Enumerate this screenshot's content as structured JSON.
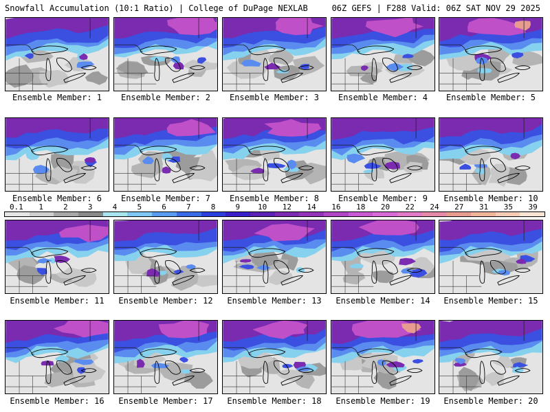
{
  "header": {
    "title": "Snowfall Accumulation (10:1 Ratio) | College of DuPage NEXLAB",
    "run_info": "06Z GEFS | F288 Valid: 06Z SAT NOV 29 2025"
  },
  "legend": {
    "values": [
      "0.1",
      "1",
      "2",
      "3",
      "4",
      "5",
      "6",
      "7",
      "8",
      "9",
      "10",
      "12",
      "14",
      "16",
      "18",
      "20",
      "22",
      "24",
      "27",
      "31",
      "35",
      "39"
    ],
    "colors": [
      "#e6e6e6",
      "#cfcfcf",
      "#a8a8a8",
      "#8a8a8a",
      "#a6e4ee",
      "#7ec8f4",
      "#5a9cf0",
      "#3b6ae8",
      "#2a3fdc",
      "#3a20c8",
      "#5b22b8",
      "#7a2bb0",
      "#9434b8",
      "#b046c6",
      "#c85ad4",
      "#d86ad8",
      "#e27ac8",
      "#e48aa8",
      "#e89c90",
      "#f0b49a",
      "#f6cdb4",
      "#fae4d4"
    ]
  },
  "members": [
    {
      "label": "Ensemble Member: 1",
      "intensity": 0.45
    },
    {
      "label": "Ensemble Member: 2",
      "intensity": 0.75
    },
    {
      "label": "Ensemble Member: 3",
      "intensity": 0.55
    },
    {
      "label": "Ensemble Member: 4",
      "intensity": 0.7
    },
    {
      "label": "Ensemble Member: 5",
      "intensity": 0.9
    },
    {
      "label": "Ensemble Member: 6",
      "intensity": 0.4
    },
    {
      "label": "Ensemble Member: 7",
      "intensity": 0.6
    },
    {
      "label": "Ensemble Member: 8",
      "intensity": 0.55
    },
    {
      "label": "Ensemble Member: 9",
      "intensity": 0.5
    },
    {
      "label": "Ensemble Member: 10",
      "intensity": 0.4
    },
    {
      "label": "Ensemble Member: 11",
      "intensity": 0.55
    },
    {
      "label": "Ensemble Member: 12",
      "intensity": 0.45
    },
    {
      "label": "Ensemble Member: 13",
      "intensity": 0.65
    },
    {
      "label": "Ensemble Member: 14",
      "intensity": 0.7
    },
    {
      "label": "Ensemble Member: 15",
      "intensity": 0.35
    },
    {
      "label": "Ensemble Member: 16",
      "intensity": 0.65
    },
    {
      "label": "Ensemble Member: 17",
      "intensity": 0.6
    },
    {
      "label": "Ensemble Member: 18",
      "intensity": 0.55
    },
    {
      "label": "Ensemble Member: 19",
      "intensity": 0.9
    },
    {
      "label": "Ensemble Member: 20",
      "intensity": 0.4
    }
  ]
}
